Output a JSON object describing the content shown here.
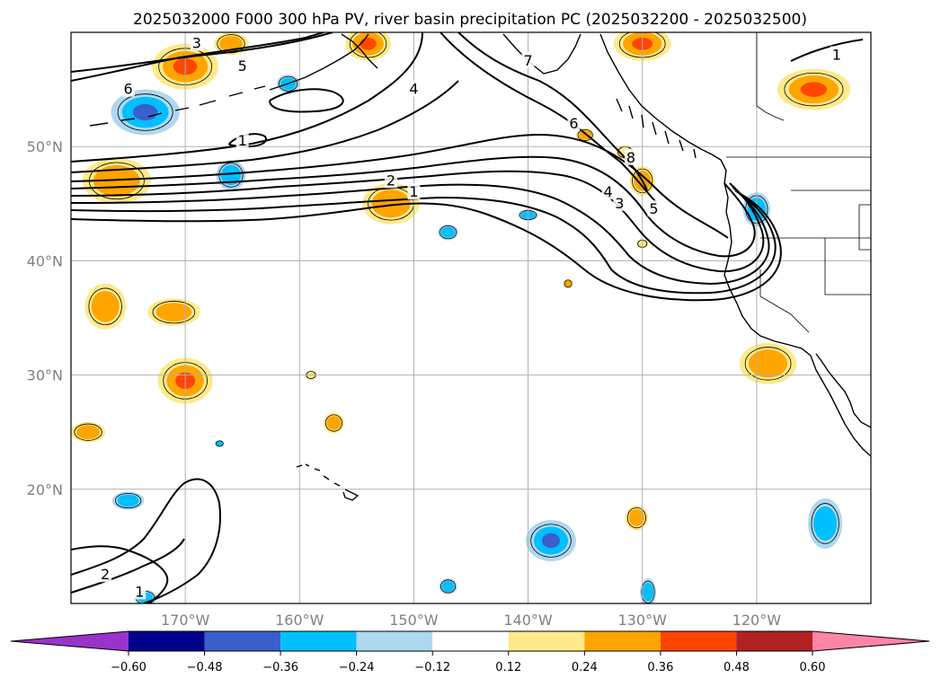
{
  "chart_data": {
    "type": "heatmap",
    "title": "2025032000 F000 300 hPa PV, river basin precipitation PC (2025032200 - 2025032500)",
    "lon_range": [
      -180,
      -110
    ],
    "lat_range": [
      10,
      60
    ],
    "lat_ticks": [
      "50°N",
      "40°N",
      "30°N",
      "20°N"
    ],
    "lon_ticks": [
      "170°W",
      "160°W",
      "150°W",
      "140°W",
      "130°W",
      "120°W"
    ],
    "grid": true,
    "colorbar": {
      "orientation": "horizontal",
      "extend": "both",
      "levels": [
        -0.6,
        -0.48,
        -0.36,
        -0.24,
        -0.12,
        0.12,
        0.24,
        0.36,
        0.48,
        0.6
      ],
      "tick_labels": [
        "−0.60",
        "−0.48",
        "−0.36",
        "−0.24",
        "−0.12",
        "0.12",
        "0.24",
        "0.36",
        "0.48",
        "0.60"
      ],
      "colors": [
        "#9933cc",
        "#00008b",
        "#3a5fcd",
        "#00bfff",
        "#add8f0",
        "#ffffff",
        "#ffe98a",
        "#ffa500",
        "#ff4500",
        "#b22222",
        "#ff85a8"
      ]
    },
    "contour_labels": [
      {
        "text": "3",
        "lon": -169,
        "lat": 59
      },
      {
        "text": "5",
        "lon": -165,
        "lat": 57
      },
      {
        "text": "6",
        "lon": -175,
        "lat": 55
      },
      {
        "text": "4",
        "lon": -150,
        "lat": 55
      },
      {
        "text": "7",
        "lon": -140,
        "lat": 57.5
      },
      {
        "text": "1",
        "lon": -165,
        "lat": 50.5
      },
      {
        "text": "2",
        "lon": -152,
        "lat": 47
      },
      {
        "text": "1",
        "lon": -150,
        "lat": 46
      },
      {
        "text": "6",
        "lon": -136,
        "lat": 52
      },
      {
        "text": "8",
        "lon": -131,
        "lat": 49
      },
      {
        "text": "4",
        "lon": -133,
        "lat": 46
      },
      {
        "text": "3",
        "lon": -132,
        "lat": 45
      },
      {
        "text": "5",
        "lon": -129,
        "lat": 44.5
      },
      {
        "text": "1",
        "lon": -113,
        "lat": 58
      },
      {
        "text": "2",
        "lon": -177,
        "lat": 12.5
      },
      {
        "text": "1",
        "lon": -174,
        "lat": 11
      }
    ],
    "blobs": [
      {
        "lon": -170,
        "lat": 57,
        "rx": 2.9,
        "ry": 2.0,
        "value": 0.38
      },
      {
        "lon": -166,
        "lat": 59,
        "rx": 1.5,
        "ry": 1.0,
        "value": 0.3
      },
      {
        "lon": -154,
        "lat": 59,
        "rx": 2.0,
        "ry": 1.5,
        "value": 0.38
      },
      {
        "lon": -130,
        "lat": 59,
        "rx": 2.5,
        "ry": 1.5,
        "value": 0.38
      },
      {
        "lon": -115,
        "lat": 55,
        "rx": 3.2,
        "ry": 1.8,
        "value": 0.38
      },
      {
        "lon": -161,
        "lat": 55.5,
        "rx": 1.0,
        "ry": 0.8,
        "value": -0.3
      },
      {
        "lon": -173.5,
        "lat": 53,
        "rx": 3.0,
        "ry": 2.0,
        "value": -0.42
      },
      {
        "lon": -176,
        "lat": 47,
        "rx": 3.0,
        "ry": 2.0,
        "value": 0.3
      },
      {
        "lon": -166,
        "lat": 47.5,
        "rx": 1.3,
        "ry": 1.3,
        "value": -0.3
      },
      {
        "lon": -152,
        "lat": 45,
        "rx": 2.5,
        "ry": 1.8,
        "value": 0.3
      },
      {
        "lon": -147,
        "lat": 42.5,
        "rx": 0.9,
        "ry": 0.7,
        "value": -0.3
      },
      {
        "lon": -140,
        "lat": 44,
        "rx": 0.9,
        "ry": 0.5,
        "value": -0.3
      },
      {
        "lon": -135,
        "lat": 51,
        "rx": 0.8,
        "ry": 0.6,
        "value": 0.3
      },
      {
        "lon": -131.5,
        "lat": 49.5,
        "rx": 0.8,
        "ry": 0.6,
        "value": 0.2
      },
      {
        "lon": -130,
        "lat": 47,
        "rx": 1.1,
        "ry": 1.3,
        "value": 0.3
      },
      {
        "lon": -130,
        "lat": 41.5,
        "rx": 0.5,
        "ry": 0.4,
        "value": 0.2
      },
      {
        "lon": -136.5,
        "lat": 38,
        "rx": 0.4,
        "ry": 0.4,
        "value": 0.3
      },
      {
        "lon": -120,
        "lat": 44.5,
        "rx": 1.2,
        "ry": 1.5,
        "value": -0.3
      },
      {
        "lon": -177,
        "lat": 36,
        "rx": 1.8,
        "ry": 2.0,
        "value": 0.3
      },
      {
        "lon": -171,
        "lat": 35.5,
        "rx": 2.3,
        "ry": 1.2,
        "value": 0.3
      },
      {
        "lon": -170,
        "lat": 29.5,
        "rx": 2.4,
        "ry": 2.0,
        "value": 0.38
      },
      {
        "lon": -159,
        "lat": 30,
        "rx": 0.5,
        "ry": 0.4,
        "value": 0.2
      },
      {
        "lon": -157,
        "lat": 25.8,
        "rx": 0.9,
        "ry": 0.9,
        "value": 0.3
      },
      {
        "lon": -178.5,
        "lat": 25,
        "rx": 1.5,
        "ry": 0.9,
        "value": 0.3
      },
      {
        "lon": -167,
        "lat": 24,
        "rx": 0.4,
        "ry": 0.3,
        "value": -0.3
      },
      {
        "lon": -175,
        "lat": 19,
        "rx": 1.4,
        "ry": 0.8,
        "value": -0.3
      },
      {
        "lon": -119,
        "lat": 31,
        "rx": 2.5,
        "ry": 1.8,
        "value": 0.3
      },
      {
        "lon": -138,
        "lat": 15.5,
        "rx": 2.2,
        "ry": 1.8,
        "value": -0.42
      },
      {
        "lon": -130.5,
        "lat": 17.5,
        "rx": 1.0,
        "ry": 1.1,
        "value": 0.3
      },
      {
        "lon": -114,
        "lat": 17,
        "rx": 1.5,
        "ry": 2.2,
        "value": -0.32
      },
      {
        "lon": -147,
        "lat": 11.5,
        "rx": 0.8,
        "ry": 0.7,
        "value": -0.3
      },
      {
        "lon": -129.5,
        "lat": 11,
        "rx": 0.7,
        "ry": 1.2,
        "value": -0.3
      },
      {
        "lon": -173.5,
        "lat": 10.5,
        "rx": 1.0,
        "ry": 0.7,
        "value": -0.3
      }
    ]
  }
}
